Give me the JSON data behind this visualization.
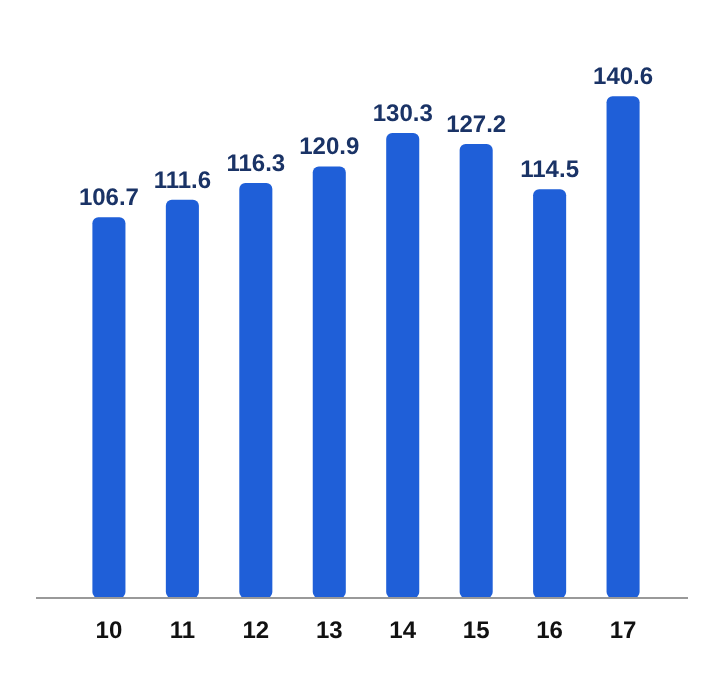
{
  "chart_data": {
    "type": "bar",
    "categories": [
      "10",
      "11",
      "12",
      "13",
      "14",
      "15",
      "16",
      "17"
    ],
    "values": [
      106.7,
      111.6,
      116.3,
      120.9,
      130.3,
      127.2,
      114.5,
      140.6
    ],
    "color": "#1f5fd8",
    "data_labels": true
  }
}
